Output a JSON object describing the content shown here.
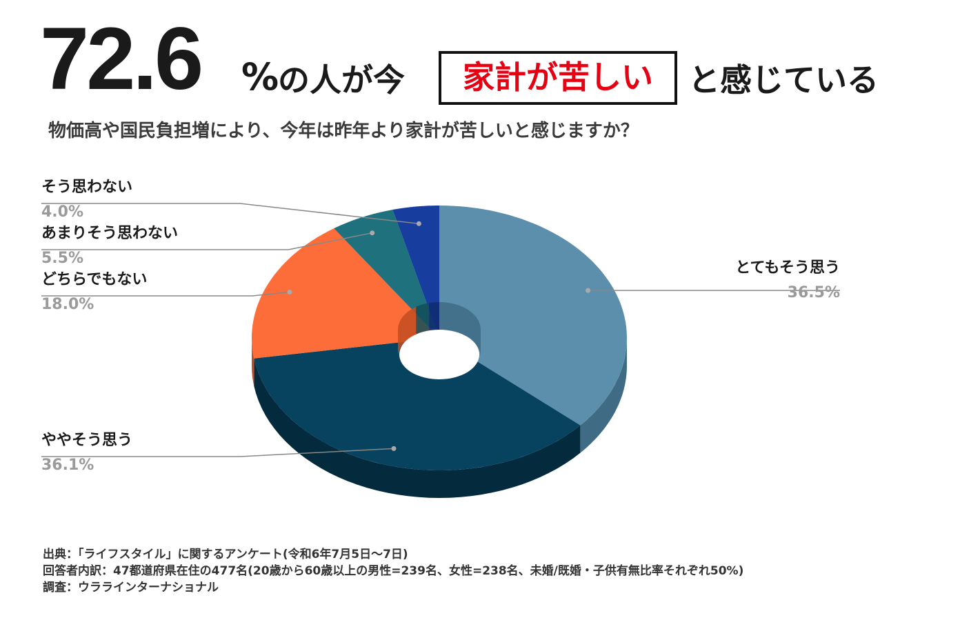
{
  "headline": {
    "number": "72.6",
    "percent": "%",
    "middle": "の人が今",
    "highlight": "家計が苦しい",
    "end": "と感じている"
  },
  "question": "物価高や国民負担増により、今年は昨年より家計が苦しいと感じますか？",
  "colors": {
    "highlight_text": "#e60012",
    "leader_line": "#888888",
    "value_text": "#9a9a9a"
  },
  "chart_data": {
    "type": "pie",
    "style": "3d-donut",
    "title": "物価高や国民負担増により、今年は昨年より家計が苦しいと感じますか？",
    "unit": "%",
    "slices": [
      {
        "label": "とてもそう思う",
        "value": 36.5,
        "value_label": "36.5%",
        "color": "#5b8fac",
        "side_color": "#3f6b84"
      },
      {
        "label": "ややそう思う",
        "value": 36.1,
        "value_label": "36.1%",
        "color": "#07435f",
        "side_color": "#032b3d"
      },
      {
        "label": "どちらでもない",
        "value": 18.0,
        "value_label": "18.0%",
        "color": "#fc6d3a",
        "side_color": "#c24d22"
      },
      {
        "label": "あまりそう思わない",
        "value": 5.5,
        "value_label": "5.5%",
        "color": "#1f717d",
        "side_color": "#134e57"
      },
      {
        "label": "そう思わない",
        "value": 4.0,
        "value_label": "4.0%",
        "color": "#173d9e",
        "side_color": "#0f2a6e"
      }
    ]
  },
  "notes": [
    "出典：「ライフスタイル」に関するアンケート(令和6年7月5日〜7日)",
    "回答者内訳：47都道府県在住の477名(20歳から60歳以上の男性=239名、女性=238名、未婚/既婚・子供有無比率それぞれ50%)",
    "調査：ウラライン­ターナショナル"
  ]
}
